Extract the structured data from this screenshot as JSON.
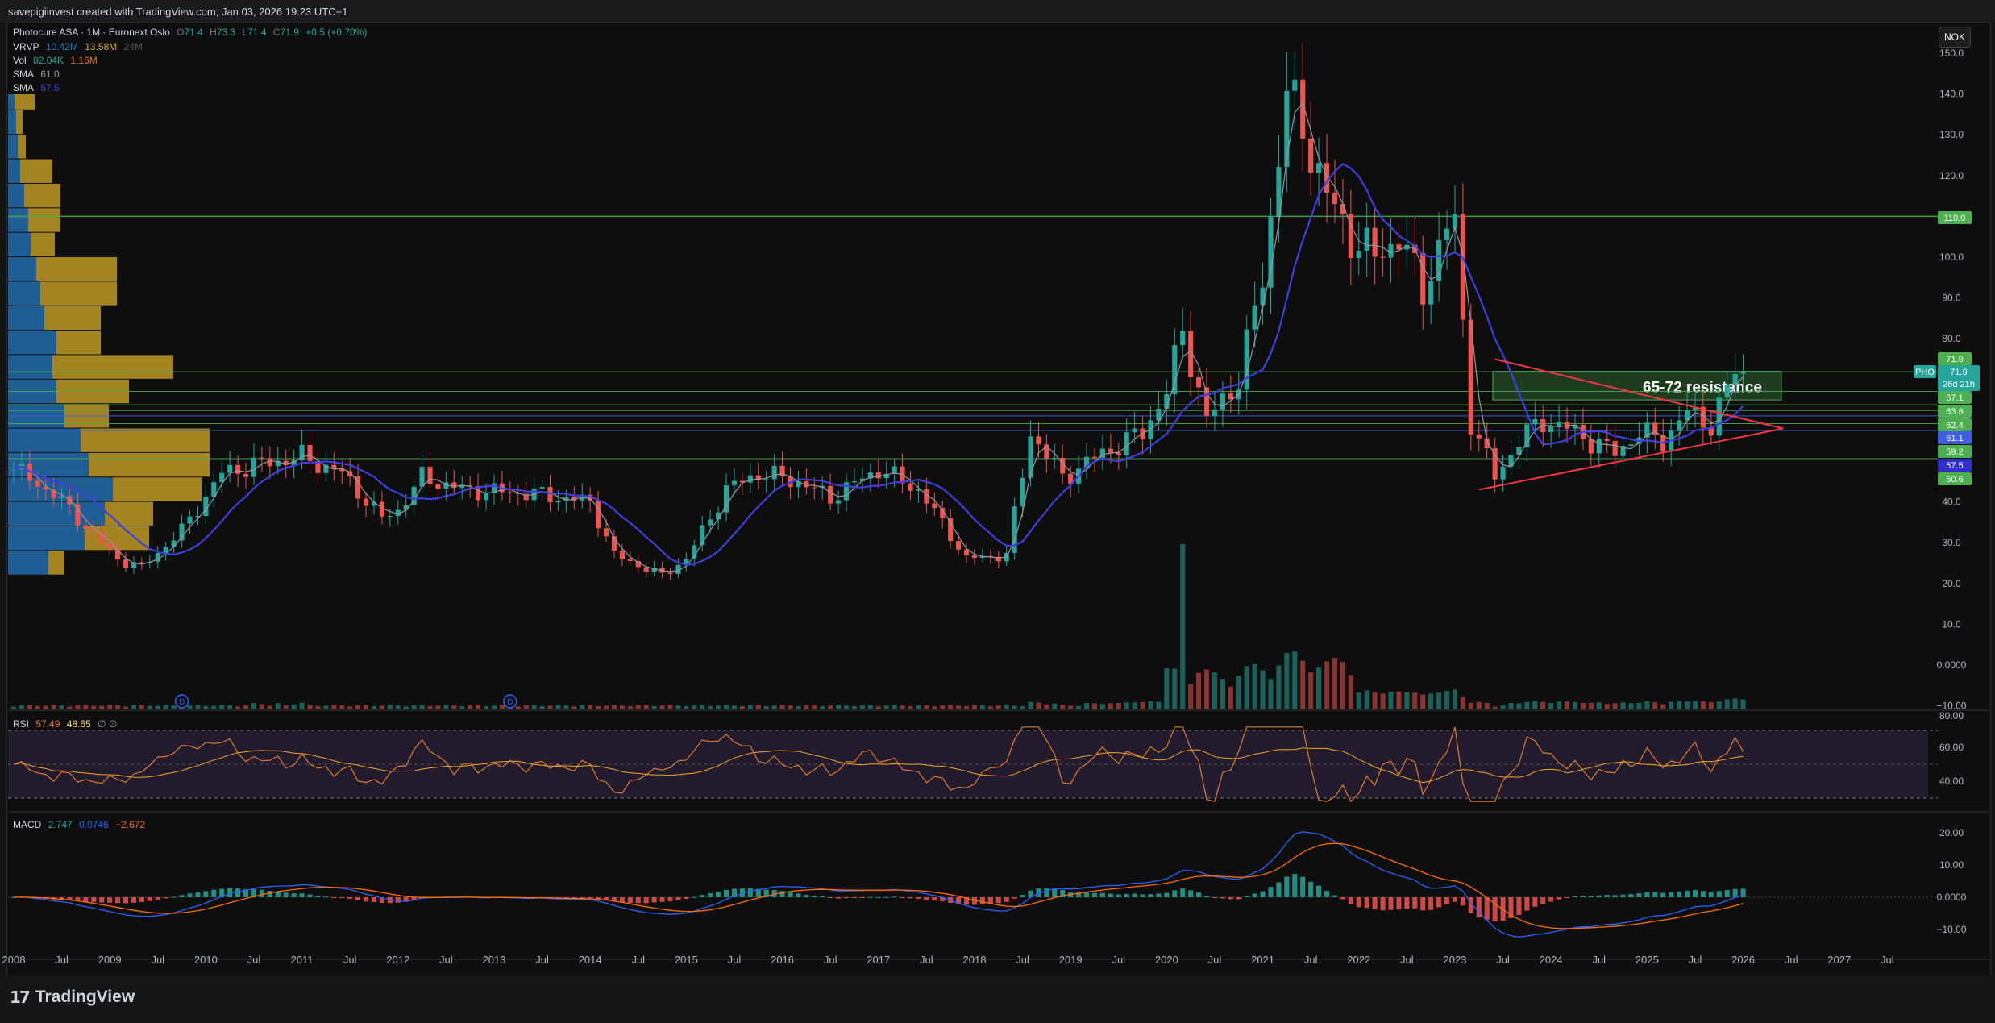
{
  "header": {
    "credit": "savepigiinvest created with TradingView.com, Jan 03, 2026 19:23 UTC+1"
  },
  "footer": {
    "brand": "TradingView"
  },
  "currency_button": "NOK",
  "legend": {
    "symbol": "Photocure ASA · 1M · Euronext Oslo",
    "o_label": "O",
    "o": "71.4",
    "h_label": "H",
    "h": "73.3",
    "l_label": "L",
    "l": "71.4",
    "c_label": "C",
    "c": "71.9",
    "change": "+0.5 (+0.70%)",
    "vrvp_label": "VRVP",
    "vrvp_up": "10.42M",
    "vrvp_down": "13.58M",
    "vrvp_total": "24M",
    "vol_label": "Vol",
    "vol_1": "82.04K",
    "vol_2": "1.16M",
    "sma1_label": "SMA",
    "sma1": "61.0",
    "sma2_label": "SMA",
    "sma2": "57.5",
    "rsi_label": "RSI",
    "rsi_1": "57.49",
    "rsi_2": "48.65",
    "rsi_3": "∅ ∅",
    "macd_label": "MACD",
    "macd_1": "2.747",
    "macd_2": "0.0746",
    "macd_3": "−2.672"
  },
  "colors": {
    "up": "#26a69a",
    "down": "#ef5350",
    "sma_fast": "#9598a1",
    "sma_slow": "#3f3fe0",
    "resistance": "#4caf50",
    "triangle": "#f23645",
    "rsi": "#e07a2e",
    "rsi_signal": "#f5a623",
    "macd": "#2962ff",
    "signal": "#ff6d00",
    "vp_up": "#2679c1",
    "vp_down": "#c9a227"
  },
  "annotation": {
    "resistance_text": "65-72 resistance"
  },
  "price_labels": [
    {
      "text": "110.0",
      "value": 110.0,
      "color": "#4caf50"
    },
    {
      "text": "71.9",
      "value": 71.9,
      "color": "#4caf50"
    },
    {
      "text": "67.1",
      "value": 67.1,
      "color": "#4caf50"
    },
    {
      "text": "63.8",
      "value": 63.8,
      "color": "#4caf50"
    },
    {
      "text": "62.4",
      "value": 62.4,
      "color": "#4caf50"
    },
    {
      "text": "61.1",
      "value": 61.1,
      "color": "#3f5fe0"
    },
    {
      "text": "59.2",
      "value": 59.2,
      "color": "#4caf50"
    },
    {
      "text": "57.5",
      "value": 57.5,
      "color": "#2f2fd0"
    },
    {
      "text": "50.6",
      "value": 50.6,
      "color": "#4caf50"
    }
  ],
  "pho_tag": {
    "ticker": "PHO",
    "price": "71.9",
    "countdown": "26d 21h"
  },
  "chart_data": {
    "type": "candlestick",
    "title": "Photocure ASA · 1M · Euronext Oslo",
    "price_axis": {
      "ticks": [
        "150.0",
        "140.0",
        "130.0",
        "120.0",
        "110.0",
        "100.0",
        "90.0",
        "80.0",
        "70.0",
        "60.0",
        "50.0",
        "40.0",
        "30.0",
        "20.0",
        "10.0",
        "0.0000",
        "−10.00"
      ],
      "ylim": [
        -10,
        155
      ]
    },
    "time_axis": {
      "labels": [
        "2008",
        "Jul",
        "2009",
        "Jul",
        "2010",
        "Jul",
        "2011",
        "Jul",
        "2012",
        "Jul",
        "2013",
        "Jul",
        "2014",
        "Jul",
        "2015",
        "Jul",
        "2016",
        "Jul",
        "2017",
        "Jul",
        "2018",
        "Jul",
        "2019",
        "Jul",
        "2020",
        "Jul",
        "2021",
        "Jul",
        "2022",
        "Jul",
        "2023",
        "Jul",
        "2024",
        "Jul",
        "2025",
        "Jul",
        "2026",
        "Jul",
        "2027",
        "Jul"
      ],
      "start": "2008-01",
      "end": "2027-12"
    },
    "close_anchors": [
      [
        "2008-01",
        48
      ],
      [
        "2008-06",
        42
      ],
      [
        "2009-02",
        26
      ],
      [
        "2009-05",
        24
      ],
      [
        "2009-10",
        33
      ],
      [
        "2010-03",
        47
      ],
      [
        "2010-07",
        49
      ],
      [
        "2011-01",
        51
      ],
      [
        "2011-06",
        47
      ],
      [
        "2011-11",
        36
      ],
      [
        "2012-01",
        38
      ],
      [
        "2012-04",
        46
      ],
      [
        "2012-09",
        43
      ],
      [
        "2013-06",
        42
      ],
      [
        "2014-01",
        40
      ],
      [
        "2014-04",
        27
      ],
      [
        "2014-10",
        22
      ],
      [
        "2015-01",
        26
      ],
      [
        "2015-06",
        43
      ],
      [
        "2015-10",
        47
      ],
      [
        "2016-03",
        45
      ],
      [
        "2016-07",
        41
      ],
      [
        "2017-01",
        48
      ],
      [
        "2017-06",
        43
      ],
      [
        "2017-10",
        32
      ],
      [
        "2017-12",
        26
      ],
      [
        "2018-05",
        27
      ],
      [
        "2018-08",
        57
      ],
      [
        "2018-12",
        46
      ],
      [
        "2019-05",
        52
      ],
      [
        "2019-10",
        57
      ],
      [
        "2020-01",
        67
      ],
      [
        "2020-03",
        82
      ],
      [
        "2020-06",
        60
      ],
      [
        "2020-10",
        70
      ],
      [
        "2021-01",
        95
      ],
      [
        "2021-04",
        140
      ],
      [
        "2021-06",
        132
      ],
      [
        "2021-09",
        115
      ],
      [
        "2021-12",
        105
      ],
      [
        "2022-03",
        100
      ],
      [
        "2022-06",
        105
      ],
      [
        "2022-09",
        92
      ],
      [
        "2022-12",
        107
      ],
      [
        "2023-01",
        108
      ],
      [
        "2023-03",
        60
      ],
      [
        "2023-06",
        46
      ],
      [
        "2023-09",
        55
      ],
      [
        "2023-12",
        60
      ],
      [
        "2024-03",
        58
      ],
      [
        "2024-06",
        55
      ],
      [
        "2024-09",
        52
      ],
      [
        "2024-12",
        57
      ],
      [
        "2025-03",
        55
      ],
      [
        "2025-06",
        62
      ],
      [
        "2025-09",
        59
      ],
      [
        "2025-12",
        71.4
      ],
      [
        "2026-01",
        71.9
      ]
    ],
    "series": [
      {
        "name": "SMA",
        "last": 61.0
      },
      {
        "name": "SMA",
        "last": 57.5
      },
      {
        "name": "RSI",
        "last": 57.49,
        "signal": 48.65,
        "ylim": [
          20,
          80
        ],
        "ticks": [
          "80.00",
          "60.00",
          "40.00"
        ]
      },
      {
        "name": "MACD",
        "values": [
          2.747,
          0.0746,
          -2.672
        ],
        "ticks": [
          "20.00",
          "10.00",
          "0.0000",
          "−10.00"
        ]
      }
    ],
    "triangle": {
      "upper": [
        [
          "2023-06",
          75
        ],
        [
          "2026-06",
          58
        ]
      ],
      "lower": [
        [
          "2023-04",
          43
        ],
        [
          "2026-06",
          58
        ]
      ]
    },
    "resistance_zone": [
      65,
      72
    ]
  }
}
